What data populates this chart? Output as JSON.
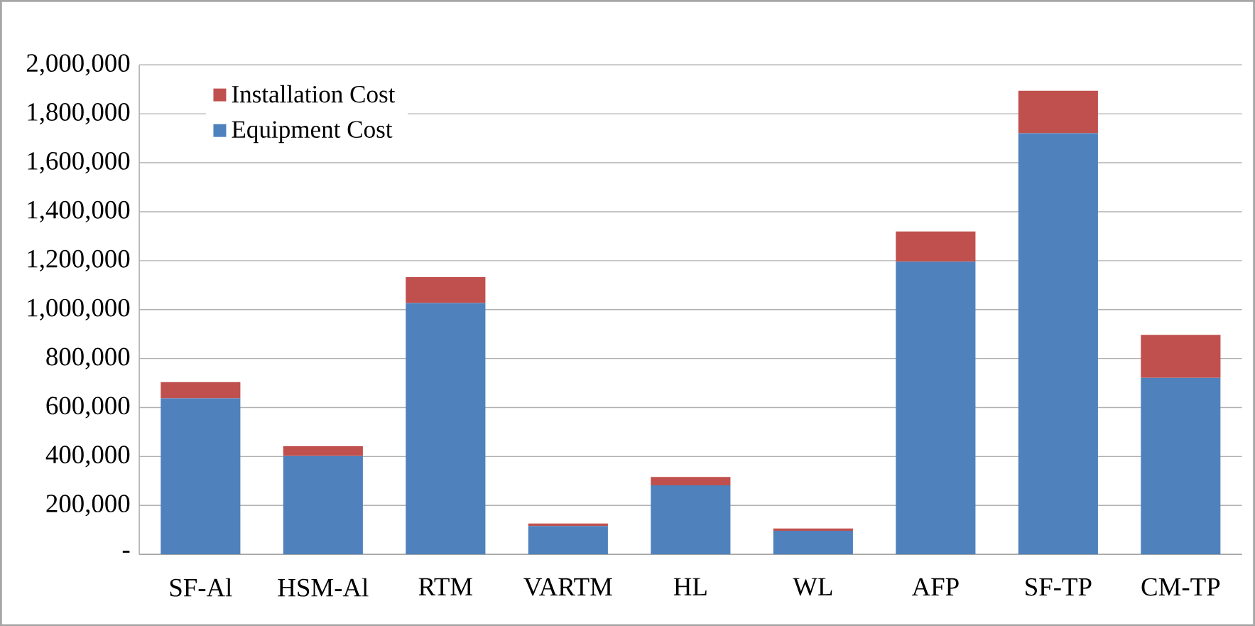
{
  "chart_data": {
    "type": "bar",
    "stacked": true,
    "categories": [
      "SF-Al",
      "HSM-Al",
      "RTM",
      "VARTM",
      "HL",
      "WL",
      "AFP",
      "SF-TP",
      "CM-TP"
    ],
    "series": [
      {
        "name": "Equipment Cost",
        "color": "#4f81bd",
        "values": [
          638000,
          402000,
          1027000,
          116000,
          282000,
          96000,
          1196000,
          1721000,
          721000
        ]
      },
      {
        "name": "Installation Cost",
        "color": "#c0504d",
        "values": [
          66000,
          40000,
          106000,
          10000,
          34000,
          10000,
          123000,
          173000,
          176000
        ]
      }
    ],
    "ylim": [
      0,
      2000000
    ],
    "yticks": [
      {
        "value": 0,
        "label": "-"
      },
      {
        "value": 200000,
        "label": "200,000"
      },
      {
        "value": 400000,
        "label": "400,000"
      },
      {
        "value": 600000,
        "label": "600,000"
      },
      {
        "value": 800000,
        "label": "800,000"
      },
      {
        "value": 1000000,
        "label": "1,000,000"
      },
      {
        "value": 1200000,
        "label": "1,200,000"
      },
      {
        "value": 1400000,
        "label": "1,400,000"
      },
      {
        "value": 1600000,
        "label": "1,600,000"
      },
      {
        "value": 1800000,
        "label": "1,800,000"
      },
      {
        "value": 2000000,
        "label": "2,000,000"
      }
    ],
    "grid": "y",
    "legend": "top left"
  }
}
